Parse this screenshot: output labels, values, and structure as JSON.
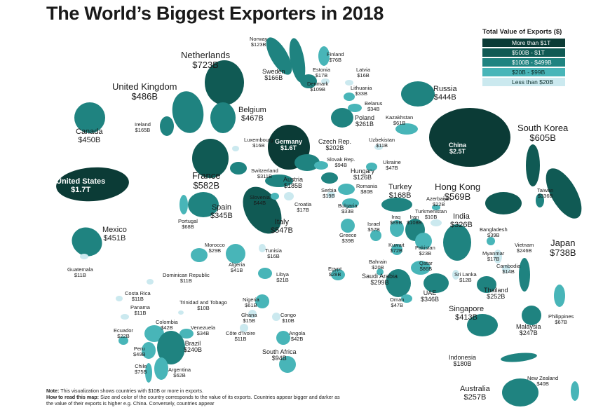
{
  "title": "The World’s Biggest Exporters in 2018",
  "legend": {
    "title": "Total Value of Exports ($)",
    "items": [
      {
        "label": "More than $1T",
        "color": "#0b3b36"
      },
      {
        "label": "$500B - $1T",
        "color": "#105a54"
      },
      {
        "label": "$100B - $499B",
        "color": "#1f8380"
      },
      {
        "label": "$20B - $99B",
        "color": "#48b5b8"
      },
      {
        "label": "Less than $20B",
        "color": "#cbe9ef"
      }
    ]
  },
  "countries": [
    {
      "name": "United States",
      "value": "$1.7T",
      "tier": 0
    },
    {
      "name": "Canada",
      "value": "$450B",
      "tier": 2
    },
    {
      "name": "Mexico",
      "value": "$451B",
      "tier": 2
    },
    {
      "name": "Guatemala",
      "value": "$11B",
      "tier": 4
    },
    {
      "name": "Dominican Republic",
      "value": "$11B",
      "tier": 4
    },
    {
      "name": "Costa Rica",
      "value": "$11B",
      "tier": 4
    },
    {
      "name": "Panama",
      "value": "$11B",
      "tier": 4
    },
    {
      "name": "Trinidad and Tobago",
      "value": "$10B",
      "tier": 4
    },
    {
      "name": "Colombia",
      "value": "$42B",
      "tier": 3
    },
    {
      "name": "Venezuela",
      "value": "$34B",
      "tier": 3
    },
    {
      "name": "Ecuador",
      "value": "$22B",
      "tier": 3
    },
    {
      "name": "Peru",
      "value": "$49B",
      "tier": 3
    },
    {
      "name": "Brazil",
      "value": "$240B",
      "tier": 2
    },
    {
      "name": "Chile",
      "value": "$75B",
      "tier": 3
    },
    {
      "name": "Argentina",
      "value": "$62B",
      "tier": 3
    },
    {
      "name": "United Kingdom",
      "value": "$486B",
      "tier": 2
    },
    {
      "name": "Ireland",
      "value": "$165B",
      "tier": 2
    },
    {
      "name": "Netherlands",
      "value": "$723B",
      "tier": 1
    },
    {
      "name": "Belgium",
      "value": "$467B",
      "tier": 2
    },
    {
      "name": "Luxembourg",
      "value": "$16B",
      "tier": 4
    },
    {
      "name": "France",
      "value": "$582B",
      "tier": 1
    },
    {
      "name": "Switzerland",
      "value": "$311B",
      "tier": 2
    },
    {
      "name": "Germany",
      "value": "$1.6T",
      "tier": 0
    },
    {
      "name": "Spain",
      "value": "$345B",
      "tier": 2
    },
    {
      "name": "Portugal",
      "value": "$68B",
      "tier": 3
    },
    {
      "name": "Italy",
      "value": "$547B",
      "tier": 1
    },
    {
      "name": "Austria",
      "value": "$185B",
      "tier": 2
    },
    {
      "name": "Slovenia",
      "value": "$44B",
      "tier": 3
    },
    {
      "name": "Croatia",
      "value": "$17B",
      "tier": 4
    },
    {
      "name": "Norway",
      "value": "$123B",
      "tier": 2
    },
    {
      "name": "Sweden",
      "value": "$166B",
      "tier": 2
    },
    {
      "name": "Finland",
      "value": "$76B",
      "tier": 3
    },
    {
      "name": "Denmark",
      "value": "$109B",
      "tier": 2
    },
    {
      "name": "Estonia",
      "value": "$17B",
      "tier": 4
    },
    {
      "name": "Latvia",
      "value": "$16B",
      "tier": 4
    },
    {
      "name": "Lithuania",
      "value": "$33B",
      "tier": 3
    },
    {
      "name": "Belarus",
      "value": "$34B",
      "tier": 3
    },
    {
      "name": "Poland",
      "value": "$261B",
      "tier": 2
    },
    {
      "name": "Czech Rep.",
      "value": "$202B",
      "tier": 2
    },
    {
      "name": "Slovak Rep.",
      "value": "$94B",
      "tier": 3
    },
    {
      "name": "Hungary",
      "value": "$126B",
      "tier": 2
    },
    {
      "name": "Romania",
      "value": "$80B",
      "tier": 3
    },
    {
      "name": "Serbia",
      "value": "$19B",
      "tier": 4
    },
    {
      "name": "Bulgaria",
      "value": "$33B",
      "tier": 3
    },
    {
      "name": "Greece",
      "value": "$39B",
      "tier": 3
    },
    {
      "name": "Ukraine",
      "value": "$47B",
      "tier": 3
    },
    {
      "name": "Russia",
      "value": "$444B",
      "tier": 2
    },
    {
      "name": "Kazakhstan",
      "value": "$61B",
      "tier": 3
    },
    {
      "name": "Uzbekistan",
      "value": "$11B",
      "tier": 4
    },
    {
      "name": "Turkey",
      "value": "$168B",
      "tier": 2
    },
    {
      "name": "Azerbaijan",
      "value": "$22B",
      "tier": 3
    },
    {
      "name": "Turkmenistan",
      "value": "$10B",
      "tier": 4
    },
    {
      "name": "Israel",
      "value": "$57B",
      "tier": 3
    },
    {
      "name": "Iraq",
      "value": "$89B",
      "tier": 3
    },
    {
      "name": "Iran",
      "value": "$108B",
      "tier": 2
    },
    {
      "name": "Kuwait",
      "value": "$72B",
      "tier": 3
    },
    {
      "name": "Bahrain",
      "value": "$20B",
      "tier": 3
    },
    {
      "name": "Qatar",
      "value": "$86B",
      "tier": 3
    },
    {
      "name": "Saudi Arabia",
      "value": "$299B",
      "tier": 2
    },
    {
      "name": "UAE",
      "value": "$346B",
      "tier": 2
    },
    {
      "name": "Oman",
      "value": "$47B",
      "tier": 3
    },
    {
      "name": "Pakistan",
      "value": "$23B",
      "tier": 3
    },
    {
      "name": "India",
      "value": "$326B",
      "tier": 2
    },
    {
      "name": "Sri Lanka",
      "value": "$12B",
      "tier": 4
    },
    {
      "name": "Bangladesh",
      "value": "$39B",
      "tier": 3
    },
    {
      "name": "Myanmar",
      "value": "$17B",
      "tier": 4
    },
    {
      "name": "Morocco",
      "value": "$29B",
      "tier": 3
    },
    {
      "name": "Tunisia",
      "value": "$16B",
      "tier": 4
    },
    {
      "name": "Algeria",
      "value": "$41B",
      "tier": 3
    },
    {
      "name": "Libya",
      "value": "$21B",
      "tier": 3
    },
    {
      "name": "Egypt",
      "value": "$28B",
      "tier": 3
    },
    {
      "name": "Nigeria",
      "value": "$61B",
      "tier": 3
    },
    {
      "name": "Ghana",
      "value": "$15B",
      "tier": 4
    },
    {
      "name": "Côte d’Ivoire",
      "value": "$11B",
      "tier": 4
    },
    {
      "name": "Congo",
      "value": "$10B",
      "tier": 4
    },
    {
      "name": "Angola",
      "value": "$42B",
      "tier": 3
    },
    {
      "name": "South Africa",
      "value": "$94B",
      "tier": 3
    },
    {
      "name": "China",
      "value": "$2.5T",
      "tier": 0
    },
    {
      "name": "South Korea",
      "value": "$605B",
      "tier": 1
    },
    {
      "name": "Taiwan",
      "value": "$336B",
      "tier": 2
    },
    {
      "name": "Japan",
      "value": "$738B",
      "tier": 1
    },
    {
      "name": "Hong Kong",
      "value": "$569B",
      "tier": 1
    },
    {
      "name": "Vietnam",
      "value": "$246B",
      "tier": 2
    },
    {
      "name": "Cambodia",
      "value": "$14B",
      "tier": 4
    },
    {
      "name": "Thailand",
      "value": "$252B",
      "tier": 2
    },
    {
      "name": "Philippines",
      "value": "$67B",
      "tier": 3
    },
    {
      "name": "Malaysia",
      "value": "$247B",
      "tier": 2
    },
    {
      "name": "Singapore",
      "value": "$413B",
      "tier": 2
    },
    {
      "name": "Indonesia",
      "value": "$180B",
      "tier": 2
    },
    {
      "name": "Australia",
      "value": "$257B",
      "tier": 2
    },
    {
      "name": "New Zealand",
      "value": "$40B",
      "tier": 3
    }
  ],
  "note": {
    "label1": "Note:",
    "text1": "This visualization shows countries with $10B or more in exports.",
    "label2": "How to read this map:",
    "text2": "Size and color of the country corresponds to the value of its exports. Countries appear bigger and darker as the value of their exports is higher e.g. China. Conversely, countries appear"
  }
}
